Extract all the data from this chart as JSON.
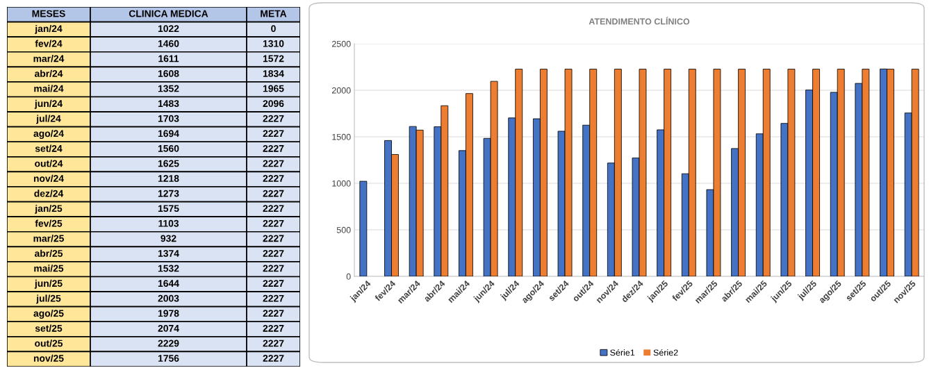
{
  "chart_data": [
    {
      "type": "other",
      "categories": [
        "jan/24",
        "fev/24",
        "mar/24",
        "abr/24",
        "mai/24",
        "jun/24",
        "jul/24",
        "ago/24",
        "set/24",
        "out/24",
        "nov/24",
        "dez/24",
        "jan/25",
        "fev/25",
        "mar/25",
        "abr/25",
        "mai/25",
        "jun/25",
        "jul/25",
        "ago/25",
        "set/25",
        "out/25",
        "nov/25"
      ],
      "series": [
        {
          "name": "CLINICA MEDICA",
          "values": [
            1022,
            1460,
            1611,
            1608,
            1352,
            1483,
            1703,
            1694,
            1560,
            1625,
            1218,
            1273,
            1575,
            1103,
            932,
            1374,
            1532,
            1644,
            2003,
            1978,
            2074,
            2229,
            1756
          ],
          "value_labels": [
            "1022",
            "1460",
            "1611",
            "1608",
            "1352",
            "1483",
            "1703",
            "1694",
            "1560",
            "1625",
            "1218",
            "1273",
            "1575",
            "1103",
            "932",
            "1374",
            "1532",
            "1644",
            "2003",
            "1978",
            "2074",
            "2229",
            "1756"
          ]
        },
        {
          "name": "META",
          "values": [
            0,
            1310,
            1572,
            1834,
            1965,
            2096,
            2227,
            2227,
            2227,
            2227,
            2227,
            2227,
            2227,
            2227,
            2227,
            2227,
            2227,
            2227,
            2227,
            2227,
            2227,
            2227,
            2227
          ],
          "value_labels": [
            "0",
            "1310",
            "1572",
            "1834",
            "1965",
            "2096",
            "2227",
            "2227",
            "2227",
            "2227",
            "2227",
            "2227",
            "2227",
            "2227",
            "2227",
            "2227",
            "2227",
            "2227",
            "2227",
            "2227",
            "2227",
            "2227",
            "2227"
          ]
        }
      ],
      "data_labels": true,
      "annotations": [
        "MESES"
      ]
    },
    {
      "type": "bar",
      "title": "ATENDIMENTO CLÍNICO",
      "categories": [
        "jan/24",
        "fev/24",
        "mar/24",
        "abr/24",
        "mai/24",
        "jun/24",
        "jul/24",
        "ago/24",
        "set/24",
        "out/24",
        "nov/24",
        "dez/24",
        "jan/25",
        "fev/25",
        "mar/25",
        "abr/25",
        "mai/25",
        "jun/25",
        "jul/25",
        "ago/25",
        "set/25",
        "out/25",
        "nov/25"
      ],
      "series": [
        {
          "name": "Série1",
          "color": "#4472c4",
          "values": [
            1022,
            1460,
            1611,
            1608,
            1352,
            1483,
            1703,
            1694,
            1560,
            1625,
            1218,
            1273,
            1575,
            1103,
            932,
            1374,
            1532,
            1644,
            2003,
            1978,
            2074,
            2229,
            1756
          ]
        },
        {
          "name": "Série2",
          "color": "#ed7d31",
          "values": [
            0,
            1310,
            1572,
            1834,
            1965,
            2096,
            2227,
            2227,
            2227,
            2227,
            2227,
            2227,
            2227,
            2227,
            2227,
            2227,
            2227,
            2227,
            2227,
            2227,
            2227,
            2227,
            2227
          ]
        }
      ],
      "ylim": [
        0,
        2500
      ],
      "yticks": [
        0,
        500,
        1000,
        1500,
        2000,
        2500
      ],
      "grid": "y",
      "legend": "bottom"
    }
  ]
}
